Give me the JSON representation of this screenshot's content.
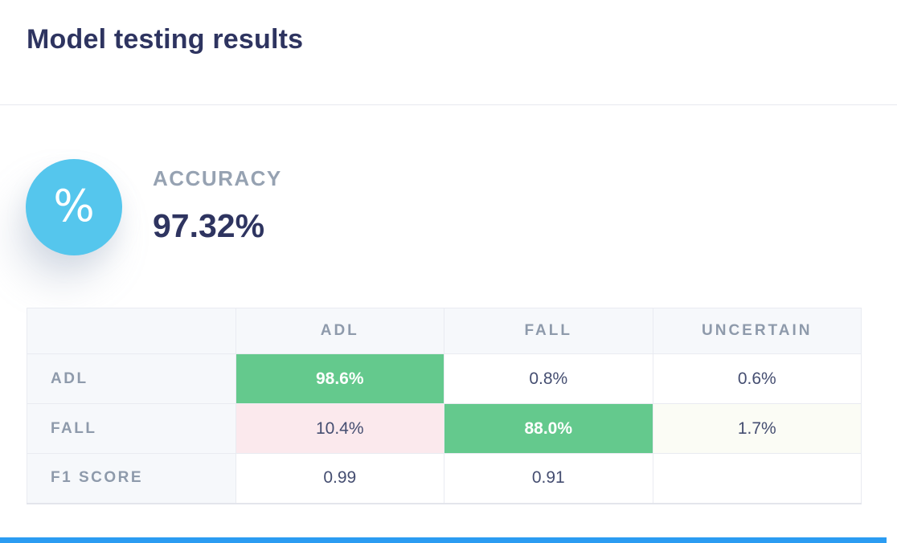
{
  "page": {
    "title": "Model testing results"
  },
  "accuracy": {
    "label": "ACCURACY",
    "value": "97.32%",
    "icon_glyph": "%"
  },
  "matrix": {
    "columns": [
      "",
      "ADL",
      "FALL",
      "UNCERTAIN"
    ],
    "rows": [
      {
        "label": "ADL",
        "cells": [
          {
            "text": "98.6%"
          },
          {
            "text": "0.8%"
          },
          {
            "text": "0.6%"
          }
        ]
      },
      {
        "label": "FALL",
        "cells": [
          {
            "text": "10.4%"
          },
          {
            "text": "88.0%"
          },
          {
            "text": "1.7%"
          }
        ]
      },
      {
        "label": "F1 SCORE",
        "cells": [
          {
            "text": "0.99"
          },
          {
            "text": "0.91"
          },
          {
            "text": ""
          }
        ]
      }
    ]
  },
  "colors": {
    "accent_circle_blue": "#55c6ed",
    "highlight_green": "#64c98d",
    "highlight_pink": "#fbe9ed",
    "highlight_faint_green": "#fbfcf5",
    "title_navy": "#2e3460",
    "cell_text_navy": "#454e71",
    "muted_label_gray": "#8e9aab",
    "bottom_bar_blue": "#2b9cf2"
  }
}
